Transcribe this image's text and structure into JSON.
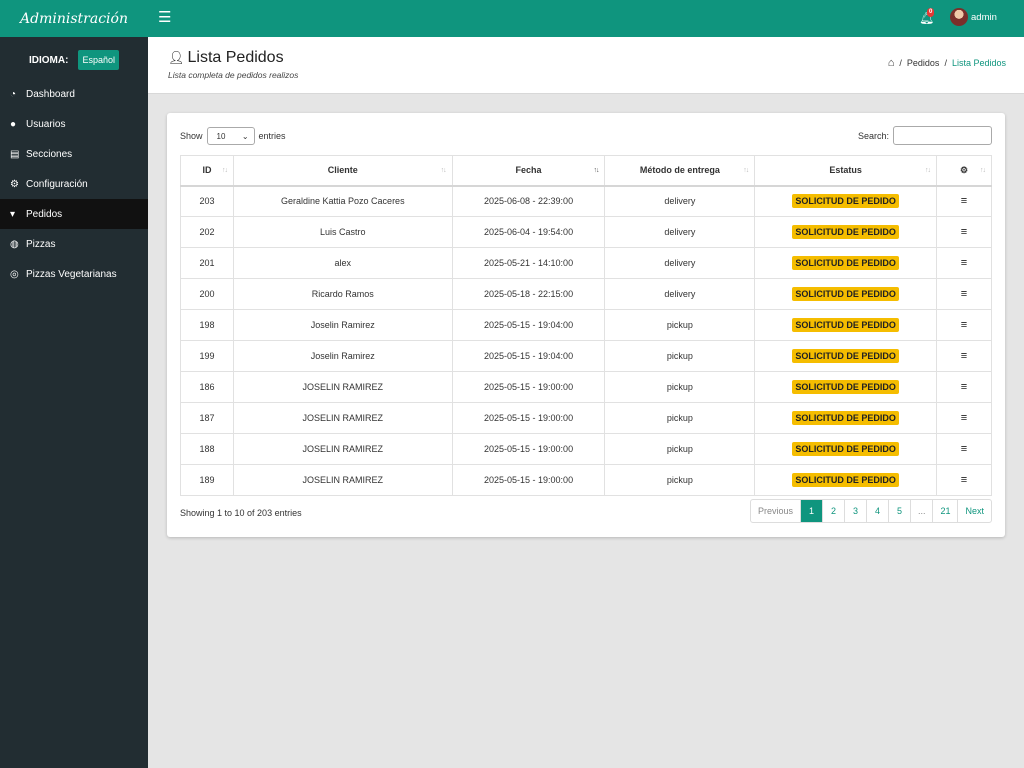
{
  "app": {
    "brand": "Administración"
  },
  "language": {
    "label": "IDIOMA:",
    "current": "Español"
  },
  "sidebar": {
    "items": [
      {
        "label": "Dashboard",
        "icon": "dashboard-icon",
        "glyph": "◔",
        "active": false
      },
      {
        "label": "Usuarios",
        "icon": "user-icon",
        "glyph": "●",
        "active": false
      },
      {
        "label": "Secciones",
        "icon": "table-icon",
        "glyph": "▤",
        "active": false
      },
      {
        "label": "Configuración",
        "icon": "gears-icon",
        "glyph": "⚙",
        "active": false
      },
      {
        "label": "Pedidos",
        "icon": "cart-icon",
        "glyph": "▾",
        "active": true
      },
      {
        "label": "Pizzas",
        "icon": "globe-icon",
        "glyph": "◍",
        "active": false
      },
      {
        "label": "Pizzas Vegetarianas",
        "icon": "pizza-icon",
        "glyph": "◎",
        "active": false
      }
    ]
  },
  "topbar": {
    "notifications_count": "0",
    "user_name": "admin"
  },
  "page": {
    "title": "Lista Pedidos",
    "subtitle": "Lista completa de pedidos realizos",
    "breadcrumb": [
      "Pedidos",
      "Lista Pedidos"
    ]
  },
  "table_controls": {
    "show_label": "Show",
    "entries_value": "10",
    "entries_label": "entries",
    "search_label": "Search:"
  },
  "table": {
    "columns": [
      "ID",
      "Cliente",
      "Fecha",
      "Método de entrega",
      "Estatus"
    ],
    "rows": [
      [
        "203",
        "Geraldine Kattia Pozo Caceres",
        "2025-06-08 - 22:39:00",
        "delivery",
        "SOLICITUD DE PEDIDO"
      ],
      [
        "202",
        "Luis Castro",
        "2025-06-04 - 19:54:00",
        "delivery",
        "SOLICITUD DE PEDIDO"
      ],
      [
        "201",
        "alex",
        "2025-05-21 - 14:10:00",
        "delivery",
        "SOLICITUD DE PEDIDO"
      ],
      [
        "200",
        "Ricardo Ramos",
        "2025-05-18 - 22:15:00",
        "delivery",
        "SOLICITUD DE PEDIDO"
      ],
      [
        "198",
        "Joselin Ramirez",
        "2025-05-15 - 19:04:00",
        "pickup",
        "SOLICITUD DE PEDIDO"
      ],
      [
        "199",
        "Joselin Ramirez",
        "2025-05-15 - 19:04:00",
        "pickup",
        "SOLICITUD DE PEDIDO"
      ],
      [
        "186",
        "JOSELIN RAMIREZ",
        "2025-05-15 - 19:00:00",
        "pickup",
        "SOLICITUD DE PEDIDO"
      ],
      [
        "187",
        "JOSELIN RAMIREZ",
        "2025-05-15 - 19:00:00",
        "pickup",
        "SOLICITUD DE PEDIDO"
      ],
      [
        "188",
        "JOSELIN RAMIREZ",
        "2025-05-15 - 19:00:00",
        "pickup",
        "SOLICITUD DE PEDIDO"
      ],
      [
        "189",
        "JOSELIN RAMIREZ",
        "2025-05-15 - 19:00:00",
        "pickup",
        "SOLICITUD DE PEDIDO"
      ]
    ]
  },
  "footer": {
    "info": "Showing 1 to 10 of 203 entries",
    "pagination": [
      "Previous",
      "1",
      "2",
      "3",
      "4",
      "5",
      "...",
      "21",
      "Next"
    ],
    "current_page": "1"
  },
  "colors": {
    "accent": "#0f957e",
    "sidebar": "#222d32",
    "badge": "#f5bd00"
  }
}
